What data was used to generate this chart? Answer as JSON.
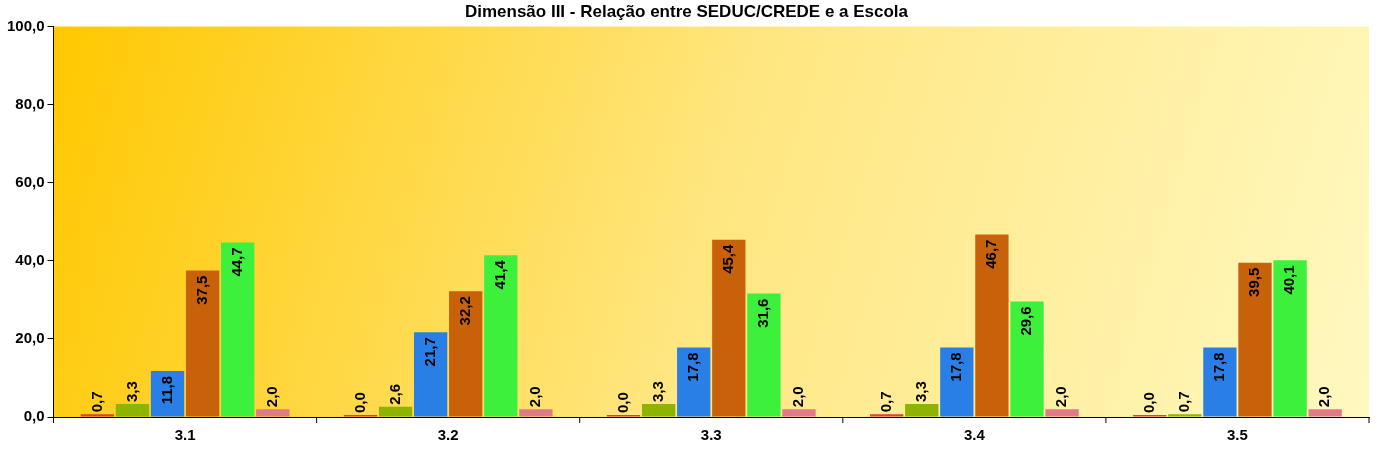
{
  "chart_data": {
    "type": "bar",
    "title": "Dimensão III - Relação entre SEDUC/CREDE e a Escola",
    "categories": [
      "3.1",
      "3.2",
      "3.3",
      "3.4",
      "3.5"
    ],
    "series": [
      {
        "color": "#e03c3c",
        "values": [
          0.7,
          0.0,
          0.0,
          0.7,
          0.0
        ],
        "value_labels": [
          "0,7",
          "0,0",
          "0,0",
          "0,7",
          "0,0"
        ]
      },
      {
        "color": "#8cb400",
        "values": [
          3.3,
          2.6,
          3.3,
          3.3,
          0.7
        ],
        "value_labels": [
          "3,3",
          "2,6",
          "3,3",
          "3,3",
          "0,7"
        ]
      },
      {
        "color": "#2a7fe6",
        "values": [
          11.8,
          21.7,
          17.8,
          17.8,
          17.8
        ],
        "value_labels": [
          "11,8",
          "21,7",
          "17,8",
          "17,8",
          "17,8"
        ]
      },
      {
        "color": "#c8620a",
        "values": [
          37.5,
          32.2,
          45.4,
          46.7,
          39.5
        ],
        "value_labels": [
          "37,5",
          "32,2",
          "45,4",
          "46,7",
          "39,5"
        ]
      },
      {
        "color": "#3cf03c",
        "values": [
          44.7,
          41.4,
          31.6,
          29.6,
          40.1
        ],
        "value_labels": [
          "44,7",
          "41,4",
          "31,6",
          "29,6",
          "40,1"
        ]
      },
      {
        "color": "#e07a86",
        "values": [
          2.0,
          2.0,
          2.0,
          2.0,
          2.0
        ],
        "value_labels": [
          "2,0",
          "2,0",
          "2,0",
          "2,0",
          "2,0"
        ]
      }
    ],
    "ylim": [
      0,
      100
    ],
    "yticks": [
      {
        "value": 0,
        "label": "0,0"
      },
      {
        "value": 20,
        "label": "20,0"
      },
      {
        "value": 40,
        "label": "40,0"
      },
      {
        "value": 60,
        "label": "60,0"
      },
      {
        "value": 80,
        "label": "80,0"
      },
      {
        "value": 100,
        "label": "100,0"
      }
    ],
    "grid": false,
    "legend": false
  }
}
